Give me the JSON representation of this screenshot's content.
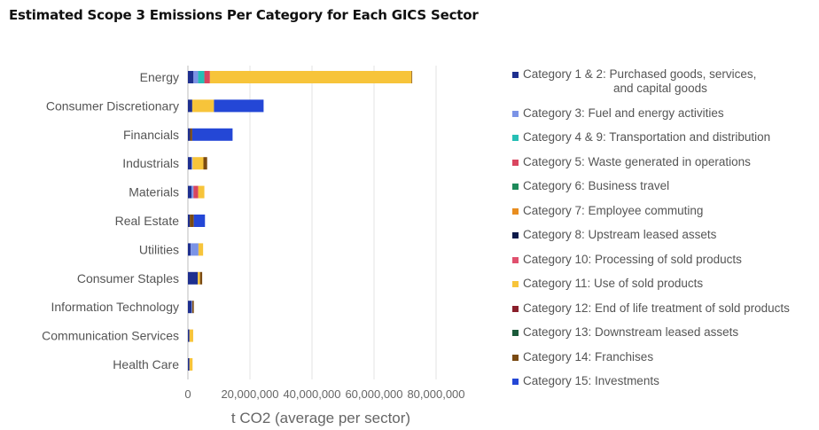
{
  "chart_data": {
    "type": "bar",
    "orientation": "horizontal",
    "stacked": true,
    "title": "Estimated Scope 3 Emissions Per Category for Each GICS Sector",
    "xlabel": "t CO2 (average per sector)",
    "ylabel": "",
    "xlim": [
      0,
      90000000
    ],
    "xticks": [
      0,
      20000000,
      40000000,
      60000000,
      80000000
    ],
    "xtick_labels": [
      "0",
      "20,000,000",
      "40,000,000",
      "60,000,000",
      "80,000,000"
    ],
    "grid": true,
    "legend_position": "right",
    "categories": [
      "Energy",
      "Consumer Discretionary",
      "Financials",
      "Industrials",
      "Materials",
      "Real Estate",
      "Utilities",
      "Consumer Staples",
      "Information Technology",
      "Communication Services",
      "Health Care"
    ],
    "series": [
      {
        "name": "Category 1 & 2: Purchased goods, services, and capital goods",
        "label_lines": [
          "Category 1 & 2: Purchased goods, services,",
          "and capital goods"
        ],
        "color": "#1e2f8f",
        "values": [
          1800000,
          1400000,
          700000,
          1200000,
          1200000,
          600000,
          900000,
          3200000,
          1200000,
          500000,
          500000
        ]
      },
      {
        "name": "Category 3: Fuel and energy activities",
        "color": "#7b93e6",
        "values": [
          1500000,
          0,
          0,
          300000,
          600000,
          0,
          2500000,
          0,
          200000,
          0,
          0
        ]
      },
      {
        "name": "Category 4 & 9: Transportation and distribution",
        "color": "#26bfb5",
        "values": [
          2000000,
          0,
          0,
          0,
          0,
          0,
          0,
          0,
          0,
          0,
          0
        ]
      },
      {
        "name": "Category 5: Waste generated in operations",
        "color": "#d9455f",
        "values": [
          1800000,
          0,
          0,
          0,
          1500000,
          0,
          0,
          0,
          0,
          0,
          0
        ]
      },
      {
        "name": "Category 6: Business travel",
        "color": "#1e8a5a",
        "values": [
          0,
          0,
          0,
          0,
          0,
          0,
          0,
          0,
          0,
          0,
          0
        ]
      },
      {
        "name": "Category 7: Employee commuting",
        "color": "#e88d1f",
        "values": [
          0,
          0,
          0,
          0,
          0,
          0,
          0,
          0,
          0,
          0,
          0
        ]
      },
      {
        "name": "Category 8: Upstream leased assets",
        "color": "#0d1a4a",
        "values": [
          0,
          0,
          0,
          0,
          0,
          0,
          0,
          0,
          0,
          0,
          0
        ]
      },
      {
        "name": "Category 10: Processing of sold products",
        "color": "#e0506e",
        "values": [
          0,
          0,
          0,
          0,
          0,
          0,
          0,
          0,
          0,
          0,
          0
        ]
      },
      {
        "name": "Category 11: Use of sold products",
        "color": "#f7c43a",
        "values": [
          65000000,
          7000000,
          0,
          3500000,
          2000000,
          0,
          1500000,
          700000,
          0,
          1200000,
          1000000
        ]
      },
      {
        "name": "Category 12: End of life treatment of sold products",
        "color": "#8a1f2b",
        "values": [
          0,
          0,
          0,
          0,
          0,
          0,
          0,
          0,
          0,
          0,
          0
        ]
      },
      {
        "name": "Category 13: Downstream leased assets",
        "color": "#1b5a3a",
        "values": [
          0,
          0,
          0,
          0,
          0,
          0,
          0,
          0,
          0,
          0,
          0
        ]
      },
      {
        "name": "Category 14: Franchises",
        "color": "#7a4a12",
        "values": [
          200000,
          0,
          700000,
          1200000,
          0,
          1300000,
          0,
          700000,
          500000,
          0,
          0
        ]
      },
      {
        "name": "Category 15: Investments",
        "color": "#2447d6",
        "values": [
          0,
          16000000,
          13000000,
          0,
          0,
          3600000,
          0,
          0,
          0,
          0,
          0
        ]
      }
    ]
  }
}
